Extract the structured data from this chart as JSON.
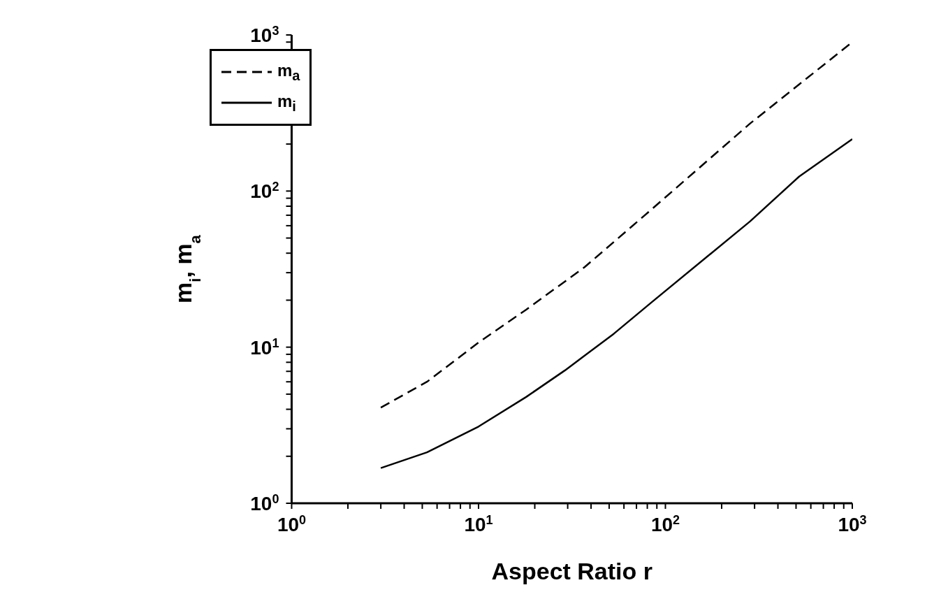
{
  "chart_data": {
    "type": "line",
    "xlabel": "Aspect Ratio r",
    "ylabel": "m$_{i}$, m$_{a}$",
    "log": "xy",
    "xlim": [
      1,
      1000
    ],
    "ylim": [
      1,
      1000
    ],
    "xticks": [
      {
        "value": 1,
        "label": "10$^{0}$"
      },
      {
        "value": 2,
        "label": null
      },
      {
        "value": 3,
        "label": null
      },
      {
        "value": 4,
        "label": null
      },
      {
        "value": 5,
        "label": null
      },
      {
        "value": 6,
        "label": null
      },
      {
        "value": 7,
        "label": null
      },
      {
        "value": 8,
        "label": null
      },
      {
        "value": 9,
        "label": null
      },
      {
        "value": 10,
        "label": "10$^{1}$"
      },
      {
        "value": 20,
        "label": null
      },
      {
        "value": 30,
        "label": null
      },
      {
        "value": 40,
        "label": null
      },
      {
        "value": 50,
        "label": null
      },
      {
        "value": 60,
        "label": null
      },
      {
        "value": 70,
        "label": null
      },
      {
        "value": 80,
        "label": null
      },
      {
        "value": 90,
        "label": null
      },
      {
        "value": 100,
        "label": "10$^{2}$"
      },
      {
        "value": 200,
        "label": null
      },
      {
        "value": 300,
        "label": null
      },
      {
        "value": 400,
        "label": null
      },
      {
        "value": 500,
        "label": null
      },
      {
        "value": 600,
        "label": null
      },
      {
        "value": 700,
        "label": null
      },
      {
        "value": 800,
        "label": null
      },
      {
        "value": 900,
        "label": null
      },
      {
        "value": 1000,
        "label": "10$^{3}$"
      }
    ],
    "yticks": [
      {
        "value": 1,
        "label": "10$^{0}$"
      },
      {
        "value": 2,
        "label": null
      },
      {
        "value": 3,
        "label": null
      },
      {
        "value": 4,
        "label": null
      },
      {
        "value": 5,
        "label": null
      },
      {
        "value": 6,
        "label": null
      },
      {
        "value": 7,
        "label": null
      },
      {
        "value": 8,
        "label": null
      },
      {
        "value": 9,
        "label": null
      },
      {
        "value": 10,
        "label": "10$^{1}$"
      },
      {
        "value": 20,
        "label": null
      },
      {
        "value": 30,
        "label": null
      },
      {
        "value": 40,
        "label": null
      },
      {
        "value": 50,
        "label": null
      },
      {
        "value": 60,
        "label": null
      },
      {
        "value": 70,
        "label": null
      },
      {
        "value": 80,
        "label": null
      },
      {
        "value": 90,
        "label": null
      },
      {
        "value": 100,
        "label": "10$^{2}$"
      },
      {
        "value": 200,
        "label": null
      },
      {
        "value": 300,
        "label": null
      },
      {
        "value": 400,
        "label": null
      },
      {
        "value": 500,
        "label": null
      },
      {
        "value": 600,
        "label": null
      },
      {
        "value": 700,
        "label": null
      },
      {
        "value": 800,
        "label": null
      },
      {
        "value": 900,
        "label": null
      },
      {
        "value": 1000,
        "label": "10$^{3}$"
      }
    ],
    "legend": "top left",
    "grid": false,
    "marker": "none",
    "series": [
      {
        "name": "m$_{a}$",
        "color": "#000000",
        "line_style": "dashed",
        "x": [
          3,
          5.3,
          10,
          18,
          37,
          84,
          284,
          1000
        ],
        "values": [
          4.1,
          6.0,
          10.7,
          17.4,
          32.6,
          76,
          271,
          900
        ]
      },
      {
        "name": "m$_{i}$",
        "color": "#000000",
        "line_style": "solid",
        "x": [
          3,
          5.3,
          10,
          18,
          29,
          53,
          84,
          284,
          520,
          1000
        ],
        "values": [
          1.68,
          2.12,
          3.1,
          4.8,
          7.1,
          12.2,
          19.3,
          64,
          124,
          215
        ]
      }
    ]
  }
}
